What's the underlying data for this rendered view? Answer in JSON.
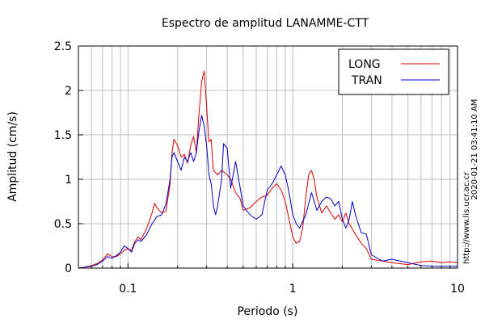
{
  "chart_data": {
    "type": "line",
    "title": "Espectro de amplitud LANAMME-CTT",
    "xlabel": "Periodo (s)",
    "ylabel": "Amplitud (cm/s)",
    "x_scale": "log",
    "xlim": [
      0.05,
      10
    ],
    "ylim": [
      0,
      2.5
    ],
    "x_ticks": [
      {
        "value": 0.1,
        "label": "0.1"
      },
      {
        "value": 1,
        "label": "1"
      },
      {
        "value": 10,
        "label": "10"
      }
    ],
    "y_ticks": [
      {
        "value": 0,
        "label": "0"
      },
      {
        "value": 0.5,
        "label": "0.5"
      },
      {
        "value": 1,
        "label": "1"
      },
      {
        "value": 1.5,
        "label": "1.5"
      },
      {
        "value": 2,
        "label": "2"
      },
      {
        "value": 2.5,
        "label": "2.5"
      }
    ],
    "grid": true,
    "legend_position": "top-right",
    "series": [
      {
        "name": "LONG",
        "color": "#dd0000",
        "points": [
          [
            0.05,
            0.0
          ],
          [
            0.055,
            0.01
          ],
          [
            0.06,
            0.03
          ],
          [
            0.065,
            0.05
          ],
          [
            0.07,
            0.09
          ],
          [
            0.075,
            0.16
          ],
          [
            0.08,
            0.13
          ],
          [
            0.085,
            0.13
          ],
          [
            0.09,
            0.16
          ],
          [
            0.095,
            0.2
          ],
          [
            0.1,
            0.22
          ],
          [
            0.105,
            0.2
          ],
          [
            0.11,
            0.3
          ],
          [
            0.115,
            0.35
          ],
          [
            0.12,
            0.32
          ],
          [
            0.13,
            0.45
          ],
          [
            0.14,
            0.62
          ],
          [
            0.145,
            0.73
          ],
          [
            0.15,
            0.68
          ],
          [
            0.16,
            0.62
          ],
          [
            0.17,
            0.64
          ],
          [
            0.18,
            0.95
          ],
          [
            0.185,
            1.3
          ],
          [
            0.19,
            1.45
          ],
          [
            0.2,
            1.38
          ],
          [
            0.21,
            1.25
          ],
          [
            0.22,
            1.28
          ],
          [
            0.23,
            1.18
          ],
          [
            0.24,
            1.38
          ],
          [
            0.25,
            1.48
          ],
          [
            0.26,
            1.3
          ],
          [
            0.27,
            1.75
          ],
          [
            0.28,
            2.1
          ],
          [
            0.29,
            2.22
          ],
          [
            0.3,
            1.82
          ],
          [
            0.31,
            1.42
          ],
          [
            0.32,
            1.45
          ],
          [
            0.33,
            1.1
          ],
          [
            0.35,
            1.05
          ],
          [
            0.37,
            1.1
          ],
          [
            0.4,
            1.05
          ],
          [
            0.42,
            1.0
          ],
          [
            0.45,
            0.85
          ],
          [
            0.48,
            0.78
          ],
          [
            0.5,
            0.65
          ],
          [
            0.55,
            0.68
          ],
          [
            0.6,
            0.75
          ],
          [
            0.65,
            0.8
          ],
          [
            0.7,
            0.82
          ],
          [
            0.75,
            0.9
          ],
          [
            0.8,
            0.95
          ],
          [
            0.85,
            0.88
          ],
          [
            0.9,
            0.75
          ],
          [
            0.95,
            0.55
          ],
          [
            1.0,
            0.35
          ],
          [
            1.05,
            0.28
          ],
          [
            1.1,
            0.3
          ],
          [
            1.15,
            0.45
          ],
          [
            1.2,
            0.8
          ],
          [
            1.25,
            1.05
          ],
          [
            1.3,
            1.1
          ],
          [
            1.35,
            1.0
          ],
          [
            1.4,
            0.8
          ],
          [
            1.5,
            0.62
          ],
          [
            1.6,
            0.7
          ],
          [
            1.7,
            0.62
          ],
          [
            1.8,
            0.55
          ],
          [
            1.9,
            0.6
          ],
          [
            2.0,
            0.52
          ],
          [
            2.1,
            0.62
          ],
          [
            2.2,
            0.5
          ],
          [
            2.4,
            0.38
          ],
          [
            2.6,
            0.28
          ],
          [
            2.8,
            0.22
          ],
          [
            3.0,
            0.1
          ],
          [
            3.5,
            0.08
          ],
          [
            4.0,
            0.06
          ],
          [
            5.0,
            0.04
          ],
          [
            6.0,
            0.07
          ],
          [
            7.0,
            0.08
          ],
          [
            8.0,
            0.06
          ],
          [
            9.0,
            0.07
          ],
          [
            10.0,
            0.06
          ]
        ]
      },
      {
        "name": "TRAN",
        "color": "#0000cc",
        "points": [
          [
            0.05,
            0.0
          ],
          [
            0.055,
            0.01
          ],
          [
            0.06,
            0.02
          ],
          [
            0.065,
            0.04
          ],
          [
            0.07,
            0.08
          ],
          [
            0.075,
            0.13
          ],
          [
            0.08,
            0.11
          ],
          [
            0.085,
            0.14
          ],
          [
            0.09,
            0.18
          ],
          [
            0.095,
            0.25
          ],
          [
            0.1,
            0.22
          ],
          [
            0.105,
            0.18
          ],
          [
            0.11,
            0.28
          ],
          [
            0.115,
            0.32
          ],
          [
            0.12,
            0.3
          ],
          [
            0.13,
            0.38
          ],
          [
            0.14,
            0.5
          ],
          [
            0.15,
            0.58
          ],
          [
            0.16,
            0.6
          ],
          [
            0.17,
            0.72
          ],
          [
            0.18,
            1.0
          ],
          [
            0.185,
            1.25
          ],
          [
            0.19,
            1.3
          ],
          [
            0.2,
            1.2
          ],
          [
            0.21,
            1.1
          ],
          [
            0.22,
            1.25
          ],
          [
            0.23,
            1.2
          ],
          [
            0.24,
            1.3
          ],
          [
            0.25,
            1.2
          ],
          [
            0.26,
            1.3
          ],
          [
            0.27,
            1.55
          ],
          [
            0.28,
            1.72
          ],
          [
            0.29,
            1.6
          ],
          [
            0.3,
            1.38
          ],
          [
            0.31,
            1.05
          ],
          [
            0.32,
            0.95
          ],
          [
            0.33,
            0.7
          ],
          [
            0.34,
            0.6
          ],
          [
            0.35,
            0.7
          ],
          [
            0.37,
            1.0
          ],
          [
            0.38,
            1.4
          ],
          [
            0.4,
            1.35
          ],
          [
            0.42,
            0.9
          ],
          [
            0.45,
            1.2
          ],
          [
            0.48,
            0.9
          ],
          [
            0.5,
            0.7
          ],
          [
            0.55,
            0.6
          ],
          [
            0.6,
            0.55
          ],
          [
            0.65,
            0.6
          ],
          [
            0.7,
            0.88
          ],
          [
            0.75,
            0.95
          ],
          [
            0.8,
            1.05
          ],
          [
            0.85,
            1.15
          ],
          [
            0.9,
            1.05
          ],
          [
            0.95,
            0.85
          ],
          [
            1.0,
            0.6
          ],
          [
            1.05,
            0.5
          ],
          [
            1.1,
            0.45
          ],
          [
            1.2,
            0.6
          ],
          [
            1.3,
            0.85
          ],
          [
            1.4,
            0.65
          ],
          [
            1.5,
            0.75
          ],
          [
            1.6,
            0.8
          ],
          [
            1.7,
            0.78
          ],
          [
            1.8,
            0.7
          ],
          [
            1.9,
            0.75
          ],
          [
            2.0,
            0.55
          ],
          [
            2.1,
            0.45
          ],
          [
            2.2,
            0.55
          ],
          [
            2.3,
            0.75
          ],
          [
            2.4,
            0.6
          ],
          [
            2.6,
            0.4
          ],
          [
            2.8,
            0.38
          ],
          [
            3.0,
            0.15
          ],
          [
            3.5,
            0.08
          ],
          [
            4.0,
            0.1
          ],
          [
            5.0,
            0.06
          ],
          [
            6.0,
            0.03
          ],
          [
            7.0,
            0.02
          ],
          [
            8.0,
            0.02
          ],
          [
            9.0,
            0.02
          ],
          [
            10.0,
            0.02
          ]
        ]
      }
    ]
  },
  "side_note": "http://www.lis.ucr.ac.cr",
  "timestamp": "2020-01-21 03:41:10 AM"
}
